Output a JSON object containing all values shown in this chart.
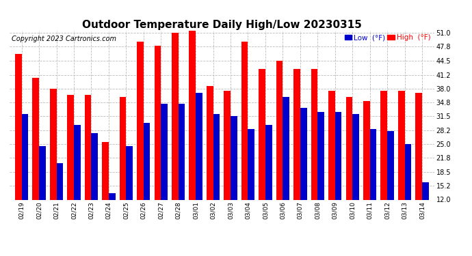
{
  "title": "Outdoor Temperature Daily High/Low 20230315",
  "copyright": "Copyright 2023 Cartronics.com",
  "legend_low": "Low  (°F)",
  "legend_high": "High  (°F)",
  "dates": [
    "02/19",
    "02/20",
    "02/21",
    "02/22",
    "02/23",
    "02/24",
    "02/25",
    "02/26",
    "02/27",
    "02/28",
    "03/01",
    "03/02",
    "03/03",
    "03/04",
    "03/05",
    "03/06",
    "03/07",
    "03/08",
    "03/09",
    "03/10",
    "03/11",
    "03/12",
    "03/13",
    "03/14"
  ],
  "highs": [
    46.0,
    40.5,
    38.0,
    36.5,
    36.5,
    25.5,
    36.0,
    49.0,
    48.0,
    51.0,
    51.5,
    38.5,
    37.5,
    49.0,
    42.5,
    44.5,
    42.5,
    42.5,
    37.5,
    36.0,
    35.0,
    37.5,
    37.5,
    37.0
  ],
  "lows": [
    32.0,
    24.5,
    20.5,
    29.5,
    27.5,
    13.5,
    24.5,
    30.0,
    34.5,
    34.5,
    37.0,
    32.0,
    31.5,
    28.5,
    29.5,
    36.0,
    33.5,
    32.5,
    32.5,
    32.0,
    28.5,
    28.0,
    25.0,
    16.0
  ],
  "high_color": "#ff0000",
  "low_color": "#0000cc",
  "ylim_min": 12.0,
  "ylim_max": 51.5,
  "yticks": [
    12.0,
    15.2,
    18.5,
    21.8,
    25.0,
    28.2,
    31.5,
    34.8,
    38.0,
    41.2,
    44.5,
    47.8,
    51.0
  ],
  "background_color": "#ffffff",
  "plot_bg_color": "#ffffff",
  "grid_color": "#bbbbbb",
  "title_fontsize": 11,
  "copyright_fontsize": 7,
  "bar_width": 0.38
}
